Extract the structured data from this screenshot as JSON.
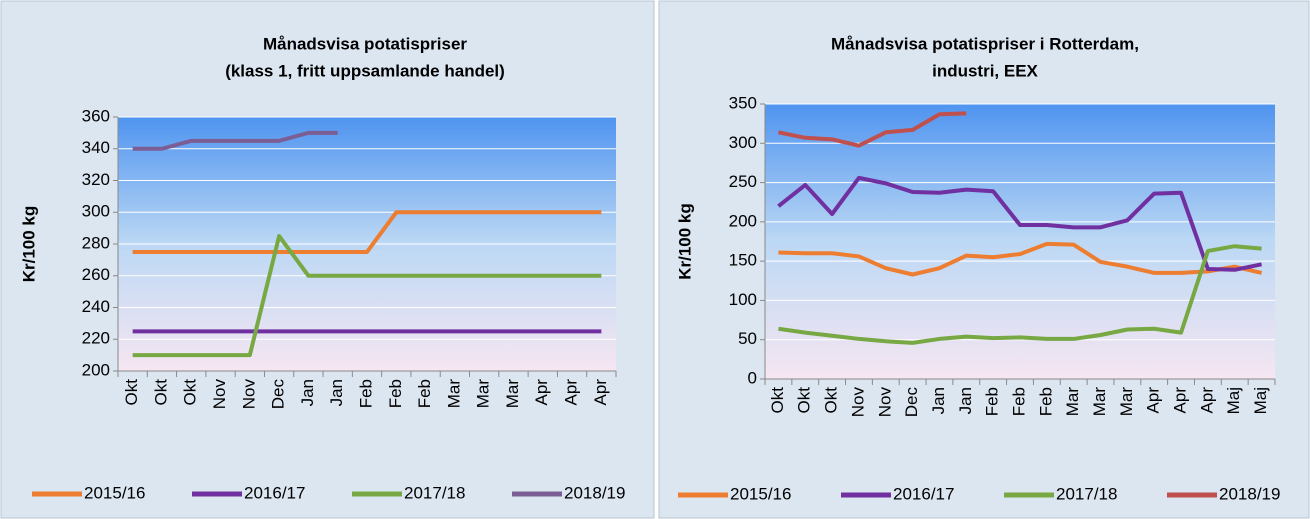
{
  "chart_data": [
    {
      "type": "line",
      "title": [
        "Månadsvisa potatispriser",
        "(klass 1, fritt uppsamlande handel)"
      ],
      "ylabel": "Kr/100 kg",
      "categories": [
        "Okt",
        "Okt",
        "Okt",
        "Nov",
        "Nov",
        "Dec",
        "Jan",
        "Jan",
        "Feb",
        "Feb",
        "Feb",
        "Mar",
        "Mar",
        "Mar",
        "Apr",
        "Apr",
        "Apr"
      ],
      "ylim": [
        200,
        360
      ],
      "yticks": [
        200,
        220,
        240,
        260,
        280,
        300,
        320,
        340,
        360
      ],
      "grid": true,
      "legend": "bottom",
      "series": [
        {
          "name": "2015/16",
          "color": "#ed7d31",
          "values": [
            275,
            275,
            275,
            275,
            275,
            275,
            275,
            275,
            275,
            300,
            300,
            300,
            300,
            300,
            300,
            300,
            300
          ]
        },
        {
          "name": "2016/17",
          "color": "#7030a0",
          "values": [
            225,
            225,
            225,
            225,
            225,
            225,
            225,
            225,
            225,
            225,
            225,
            225,
            225,
            225,
            225,
            225,
            225
          ]
        },
        {
          "name": "2017/18",
          "color": "#77a844",
          "values": [
            210,
            210,
            210,
            210,
            210,
            285,
            260,
            260,
            260,
            260,
            260,
            260,
            260,
            260,
            260,
            260,
            260
          ]
        },
        {
          "name": "2018/19",
          "color": "#7b5e93",
          "values": [
            340,
            340,
            345,
            345,
            345,
            345,
            350,
            350,
            null,
            null,
            null,
            null,
            null,
            null,
            null,
            null,
            null
          ]
        }
      ]
    },
    {
      "type": "line",
      "title": [
        "Månadsvisa potatispriser i Rotterdam,",
        "industri, EEX"
      ],
      "ylabel": "Kr/100 kg",
      "categories": [
        "Okt",
        "Okt",
        "Okt",
        "Nov",
        "Nov",
        "Dec",
        "Jan",
        "Jan",
        "Feb",
        "Feb",
        "Feb",
        "Mar",
        "Mar",
        "Mar",
        "Apr",
        "Apr",
        "Apr",
        "Maj",
        "Maj"
      ],
      "ylim": [
        0,
        350
      ],
      "yticks": [
        0,
        50,
        100,
        150,
        200,
        250,
        300,
        350
      ],
      "grid": true,
      "legend": "bottom",
      "series": [
        {
          "name": "2015/16",
          "color": "#ed7d31",
          "values": [
            161,
            160,
            160,
            156,
            141,
            133,
            141,
            157,
            155,
            159,
            172,
            171,
            149,
            143,
            135,
            135,
            137,
            143,
            135
          ]
        },
        {
          "name": "2016/17",
          "color": "#7030a0",
          "values": [
            220,
            247,
            210,
            256,
            249,
            238,
            237,
            241,
            239,
            196,
            196,
            193,
            193,
            202,
            236,
            237,
            140,
            139,
            146
          ]
        },
        {
          "name": "2017/18",
          "color": "#77a844",
          "values": [
            64,
            59,
            55,
            51,
            48,
            46,
            51,
            54,
            52,
            53,
            51,
            51,
            56,
            63,
            64,
            59,
            163,
            169,
            166
          ]
        },
        {
          "name": "2018/19",
          "color": "#c0504d",
          "values": [
            314,
            307,
            305,
            297,
            314,
            317,
            337,
            338,
            null,
            null,
            null,
            null,
            null,
            null,
            null,
            null,
            null,
            null,
            null
          ]
        }
      ]
    }
  ]
}
